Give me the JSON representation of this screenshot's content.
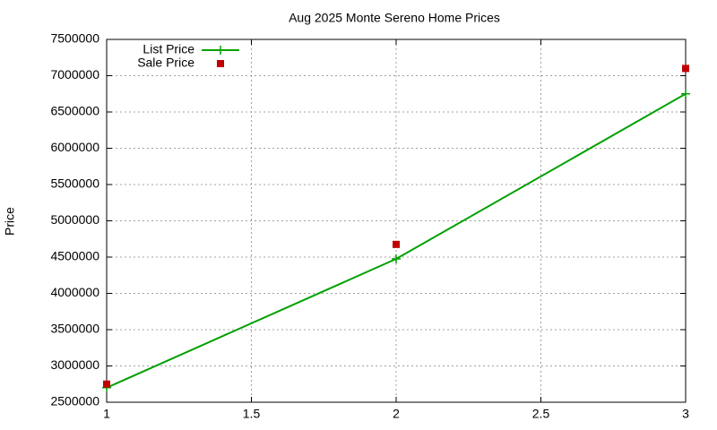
{
  "chart_data": {
    "type": "line",
    "title": "Aug 2025 Monte Sereno Home Prices",
    "y_label": "Price",
    "x": [
      1,
      2,
      3
    ],
    "series": [
      {
        "name": "List Price",
        "color": "#00a000",
        "marker": "plus",
        "line": true,
        "values": [
          2700000,
          4475000,
          6750000
        ]
      },
      {
        "name": "Sale Price",
        "color": "#c00000",
        "marker": "square",
        "line": false,
        "values": [
          2750000,
          4675000,
          7100000
        ]
      }
    ],
    "xlim": [
      1,
      3
    ],
    "xticks": [
      1,
      1.5,
      2,
      2.5,
      3
    ],
    "ylim": [
      2500000,
      7500000
    ],
    "yticks": [
      2500000,
      3000000,
      3500000,
      4000000,
      4500000,
      5000000,
      5500000,
      6000000,
      6500000,
      7000000,
      7500000
    ],
    "grid": true,
    "legend": "top-left"
  }
}
